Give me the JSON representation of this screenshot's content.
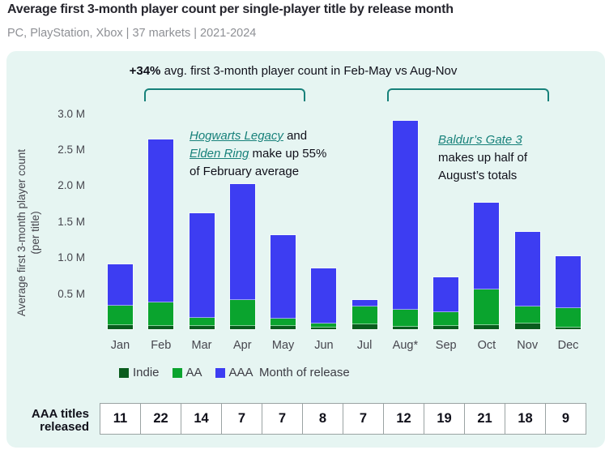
{
  "header": {
    "title": "Average first 3-month player count per single-player title by release month",
    "subtitle": "PC, PlayStation, Xbox | 37 markets | 2021-2024"
  },
  "panel": {
    "background_color": "#e6f5f2",
    "bracket_color": "#17817a",
    "link_color": "#17817a",
    "headline": {
      "highlight": "+34%",
      "rest": " avg. first 3-month player count in Feb-May vs Aug-Nov"
    },
    "annotations": [
      {
        "segments": [
          {
            "text": "Hogwarts Legacy",
            "link": true
          },
          {
            "text": " and ",
            "link": false
          },
          {
            "text": "Elden Ring",
            "link": true
          },
          {
            "text": " make up 55% of February average",
            "link": false
          }
        ]
      },
      {
        "segments": [
          {
            "text": "Baldur’s Gate 3",
            "link": true
          },
          {
            "text": " makes up half of August’s totals",
            "link": false
          }
        ]
      }
    ]
  },
  "chart_data": {
    "type": "bar",
    "stacked": true,
    "grid": false,
    "legend_position": "bottom",
    "categories": [
      "Jan",
      "Feb",
      "Mar",
      "Apr",
      "May",
      "Jun",
      "Jul",
      "Aug*",
      "Sep",
      "Oct",
      "Nov",
      "Dec"
    ],
    "series": [
      {
        "name": "Indie",
        "color": "#0a5c1e",
        "values": [
          0.06,
          0.05,
          0.05,
          0.05,
          0.05,
          0.02,
          0.07,
          0.03,
          0.05,
          0.06,
          0.08,
          0.02
        ]
      },
      {
        "name": "AA",
        "color": "#0aa42e",
        "values": [
          0.27,
          0.32,
          0.11,
          0.36,
          0.1,
          0.06,
          0.25,
          0.24,
          0.19,
          0.49,
          0.24,
          0.27
        ]
      },
      {
        "name": "AAA",
        "color": "#3d3df2",
        "values": [
          0.57,
          2.27,
          1.45,
          1.61,
          1.16,
          0.77,
          0.09,
          2.62,
          0.48,
          1.21,
          1.03,
          0.72
        ]
      }
    ],
    "totals": [
      0.9,
      2.64,
      1.61,
      2.02,
      1.31,
      0.85,
      0.41,
      2.89,
      0.72,
      1.76,
      1.35,
      1.01
    ],
    "unit": "M players",
    "ylabel": "Average first 3-month player count",
    "ylabel_sub": "(per title)",
    "xlabel": "Month of release",
    "ylim": [
      0,
      3.2
    ],
    "yticks": [
      {
        "label": "3.0 M",
        "value": 3.0
      },
      {
        "label": "2.5 M",
        "value": 2.5
      },
      {
        "label": "2.0 M",
        "value": 2.0
      },
      {
        "label": "1.5 M",
        "value": 1.5
      },
      {
        "label": "1.0 M",
        "value": 1.0
      },
      {
        "label": "0.5 M",
        "value": 0.5
      }
    ]
  },
  "table": {
    "label": "AAA titles released",
    "values": [
      "11",
      "22",
      "14",
      "7",
      "7",
      "8",
      "7",
      "12",
      "19",
      "21",
      "18",
      "9"
    ]
  }
}
